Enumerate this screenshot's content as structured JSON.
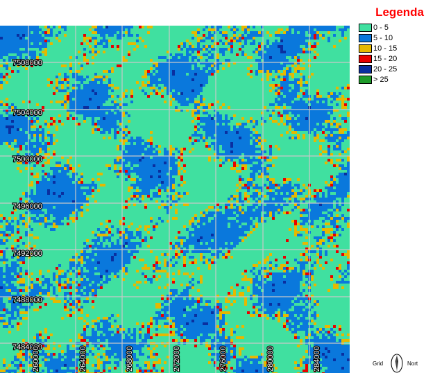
{
  "legend": {
    "title": "Legenda",
    "classes": [
      {
        "label": "0 - 5",
        "color": "#40E0A0"
      },
      {
        "label": "5 - 10",
        "color": "#0A78DC"
      },
      {
        "label": "10 - 15",
        "color": "#E6B800"
      },
      {
        "label": "15 - 20",
        "color": "#E80000"
      },
      {
        "label": "20 - 25",
        "color": "#0A2FA0"
      },
      {
        "label": "> 25",
        "color": "#1E9B2A"
      }
    ]
  },
  "grid": {
    "northing_labels": [
      "7508000",
      "7504000",
      "7500000",
      "7496000",
      "7492000",
      "7488000",
      "7484000"
    ],
    "easting_labels": [
      "260000",
      "264000",
      "268000",
      "272000",
      "276000",
      "280000",
      "284000"
    ]
  },
  "north_arrow": {
    "left_label": "Grid",
    "right_label": "Nort"
  },
  "colors": {
    "grid_lines": "#C8C8C8"
  }
}
